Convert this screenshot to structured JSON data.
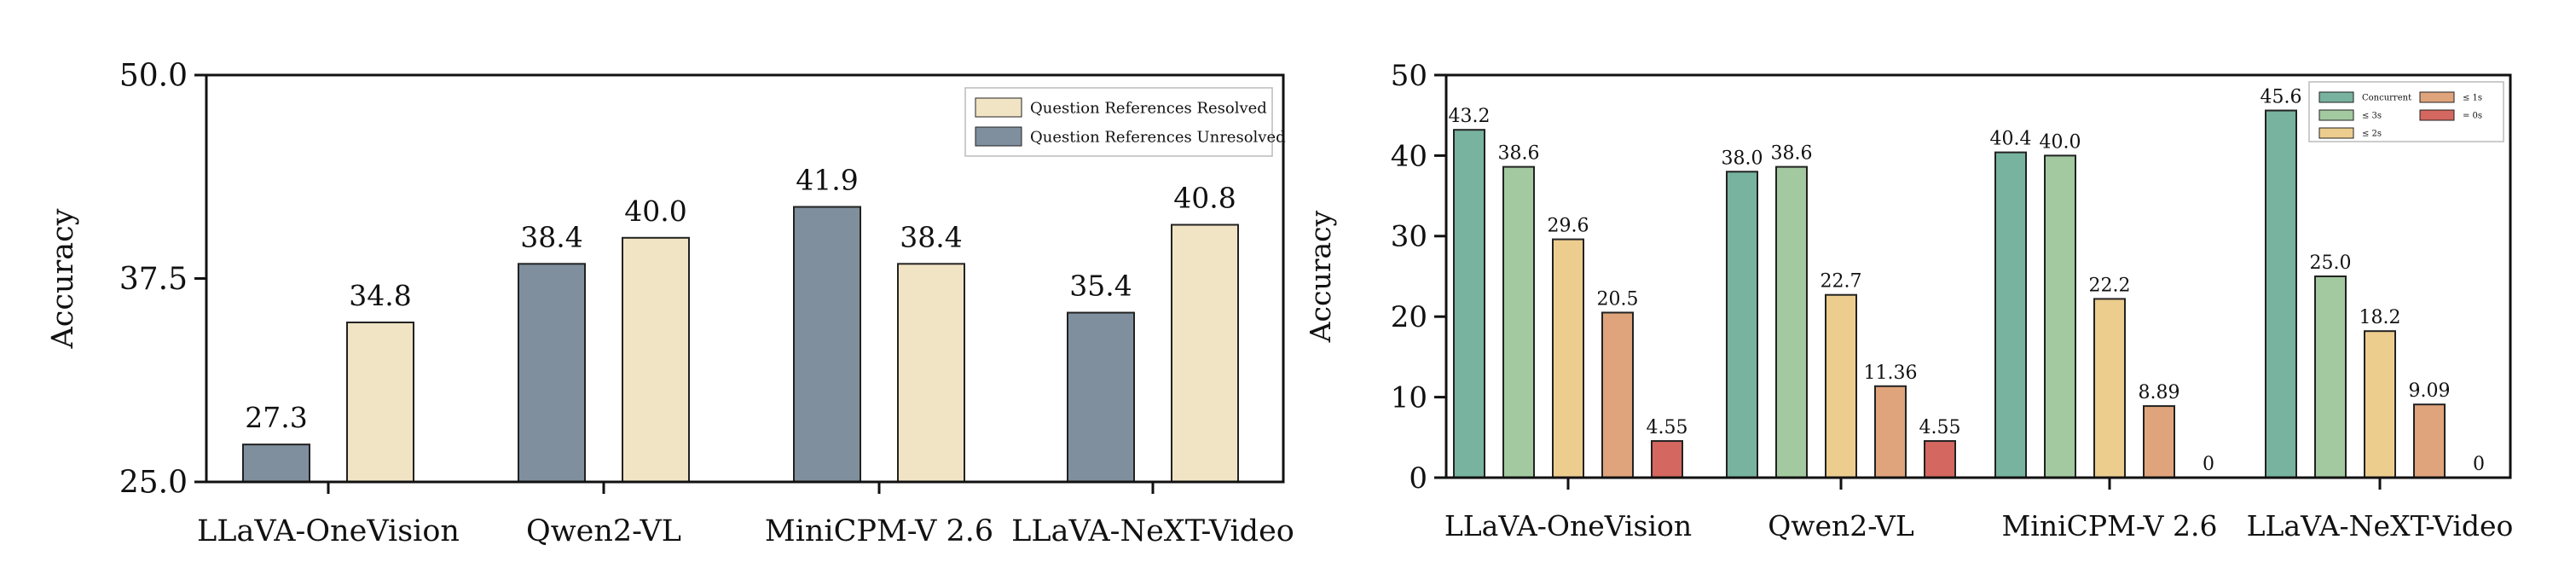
{
  "chart_data": [
    {
      "type": "bar",
      "title": "",
      "xlabel": "",
      "ylabel": "Accuracy",
      "ylim": [
        25.0,
        50.0
      ],
      "yticks": [
        "25.0",
        "37.5",
        "50.0"
      ],
      "categories": [
        "LLaVA-OneVision",
        "Qwen2-VL",
        "MiniCPM-V 2.6",
        "LLaVA-NeXT-Video"
      ],
      "legend_position": "top-right",
      "series": [
        {
          "name": "Question References Unresolved",
          "color": "#7f8f9e",
          "values": [
            27.3,
            38.4,
            41.9,
            35.4
          ],
          "labels": [
            "27.3",
            "38.4",
            "41.9",
            "35.4"
          ]
        },
        {
          "name": "Question References Resolved",
          "color": "#f1e4c4",
          "values": [
            34.8,
            40.0,
            38.4,
            40.8
          ],
          "labels": [
            "34.8",
            "40.0",
            "38.4",
            "40.8"
          ]
        }
      ],
      "legend_order": [
        1,
        0
      ]
    },
    {
      "type": "bar",
      "title": "",
      "xlabel": "",
      "ylabel": "Accuracy",
      "ylim": [
        0,
        50
      ],
      "yticks": [
        "0",
        "10",
        "20",
        "30",
        "40",
        "50"
      ],
      "categories": [
        "LLaVA-OneVision",
        "Qwen2-VL",
        "MiniCPM-V 2.6",
        "LLaVA-NeXT-Video"
      ],
      "legend_position": "top-right",
      "series": [
        {
          "name": "Concurrent",
          "color": "#77b39e",
          "values": [
            43.2,
            38.0,
            40.4,
            45.6
          ],
          "labels": [
            "43.2",
            "38.0",
            "40.4",
            "45.6"
          ]
        },
        {
          "name": "≤ 3s",
          "color": "#a3c9a0",
          "values": [
            38.6,
            38.6,
            40.0,
            25.0
          ],
          "labels": [
            "38.6",
            "38.6",
            "40.0",
            "25.0"
          ]
        },
        {
          "name": "≤ 2s",
          "color": "#edcd8e",
          "values": [
            29.6,
            22.7,
            22.2,
            18.2
          ],
          "labels": [
            "29.6",
            "22.7",
            "22.2",
            "18.2"
          ]
        },
        {
          "name": "≤ 1s",
          "color": "#e0a47c",
          "values": [
            20.5,
            11.36,
            8.89,
            9.09
          ],
          "labels": [
            "20.5",
            "11.36",
            "8.89",
            "9.09"
          ]
        },
        {
          "name": "= 0s",
          "color": "#d4675f",
          "values": [
            4.55,
            4.55,
            0,
            0
          ],
          "labels": [
            "4.55",
            "4.55",
            "0",
            "0"
          ]
        }
      ],
      "legend_order": [
        0,
        1,
        2,
        3,
        4
      ]
    }
  ]
}
